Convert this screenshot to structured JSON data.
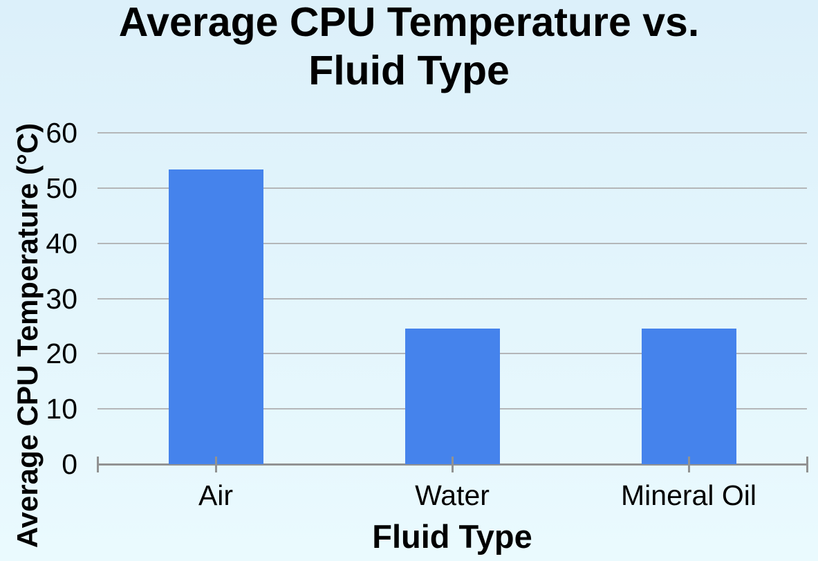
{
  "chart_data": {
    "type": "bar",
    "title": "Average CPU Temperature vs. Fluid Type",
    "title_lines": [
      "Average CPU Temperature vs.",
      "Fluid Type"
    ],
    "xlabel": "Fluid Type",
    "ylabel": "Average CPU Temperature (°C)",
    "categories": [
      "Air",
      "Water",
      "Mineral Oil"
    ],
    "values": [
      53.3,
      24.6,
      24.5
    ],
    "ylim": [
      0,
      60
    ],
    "yticks": [
      60,
      50,
      40,
      30,
      20,
      10,
      0
    ],
    "grid": "horizontal",
    "legend": "none",
    "colors": {
      "bar": "#4583EC",
      "background_top": "#dcf0fa",
      "background_bottom": "#eafafe",
      "gridline": "#b4b6b8",
      "axis": "#919292",
      "text": "#000000"
    }
  }
}
